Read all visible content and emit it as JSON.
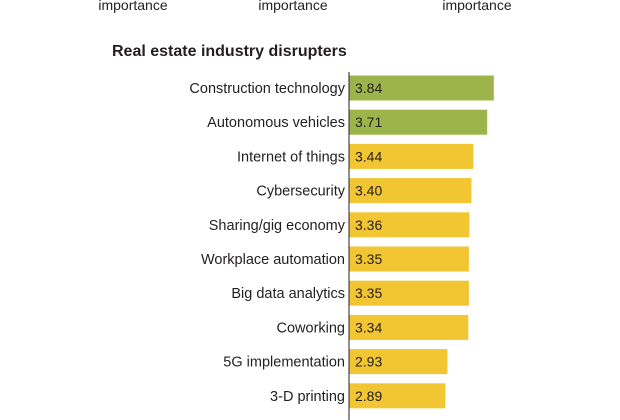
{
  "scale_labels": [
    "importance",
    "importance",
    "importance"
  ],
  "chart_data": {
    "type": "bar",
    "orientation": "horizontal",
    "title": "Real estate industry disrupters",
    "categories": [
      "Construction technology",
      "Autonomous vehicles",
      "Internet of things",
      "Cybersecurity",
      "Sharing/gig economy",
      "Workplace automation",
      "Big data analytics",
      "Coworking",
      "5G implementation",
      "3-D printing"
    ],
    "values": [
      3.84,
      3.71,
      3.44,
      3.4,
      3.36,
      3.35,
      3.35,
      3.34,
      2.93,
      2.89
    ],
    "value_labels": [
      "3.84",
      "3.71",
      "3.44",
      "3.40",
      "3.36",
      "3.35",
      "3.35",
      "3.34",
      "2.93",
      "2.89"
    ],
    "highlight_count": 2,
    "colors": {
      "highlight": "#9db44a",
      "default": "#f2c532",
      "axis": "#231f20"
    },
    "xlabel": "",
    "ylabel": "",
    "xlim": [
      1,
      5
    ]
  }
}
